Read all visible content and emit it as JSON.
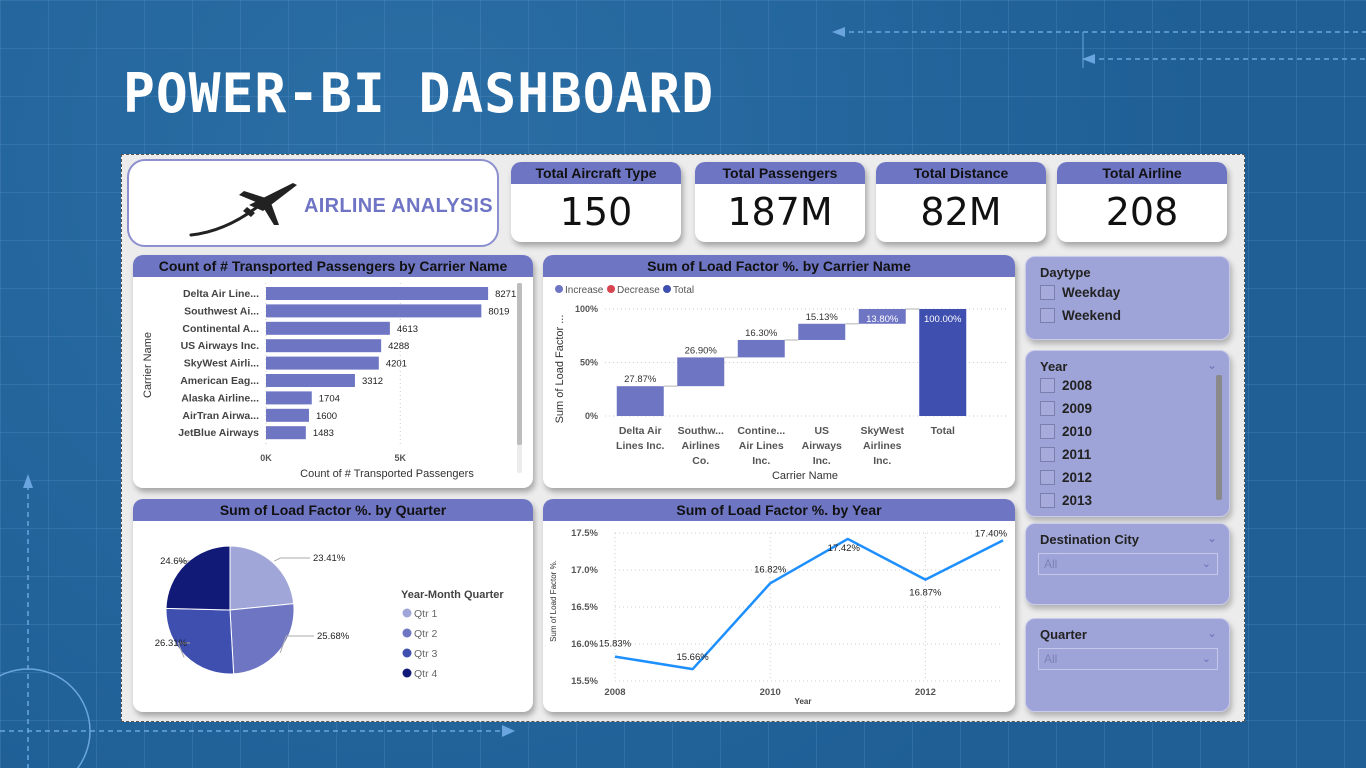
{
  "page": {
    "title": "POWER-BI DASHBOARD"
  },
  "logo": {
    "text": "AIRLINE ANALYSIS",
    "icon": "airplane-icon"
  },
  "kpis": [
    {
      "label": "Total Aircraft Type",
      "value": "150"
    },
    {
      "label": "Total Passengers",
      "value": "187M"
    },
    {
      "label": "Total Distance",
      "value": "82M"
    },
    {
      "label": "Total Airline",
      "value": "208"
    }
  ],
  "colors": {
    "header": "#6e75c3",
    "bar": "#6e75c3",
    "increase": "#6e75c3",
    "decrease": "#d64550",
    "total": "#3f4fb0",
    "line": "#1e8fff",
    "pie": [
      "#a1a6d9",
      "#6e75c3",
      "#3f4fb0",
      "#121a78"
    ],
    "slicer_bg": "#9fa4d8"
  },
  "chart_data": [
    {
      "id": "passengers_by_carrier",
      "type": "bar",
      "orientation": "horizontal",
      "title": "Count of # Transported Passengers by Carrier Name",
      "xlabel": "Count of # Transported Passengers",
      "ylabel": "Carrier Name",
      "categories": [
        "Delta Air Line...",
        "Southwest Ai...",
        "Continental A...",
        "US Airways Inc.",
        "SkyWest Airli...",
        "American Eag...",
        "Alaska Airline...",
        "AirTran Airwa...",
        "JetBlue Airways"
      ],
      "values": [
        8271,
        8019,
        4613,
        4288,
        4201,
        3312,
        1704,
        1600,
        1483
      ],
      "data_labels": [
        "8271",
        "8019",
        "4613",
        "4288",
        "4201",
        "3312",
        "1704",
        "1600",
        "1483"
      ],
      "xticks": [
        "0K",
        "5K"
      ],
      "xtick_values": [
        0,
        5000
      ],
      "xlim": [
        0,
        8900
      ],
      "grid": true
    },
    {
      "id": "load_factor_by_carrier",
      "type": "bar",
      "subtype": "waterfall",
      "title": "Sum of Load Factor %. by Carrier Name",
      "xlabel": "Carrier Name",
      "ylabel": "Sum of Load Factor ...",
      "legend": [
        "Increase",
        "Decrease",
        "Total"
      ],
      "legend_position": "top-left",
      "categories": [
        [
          "Delta Air",
          "Lines Inc."
        ],
        [
          "Southw...",
          "Airlines",
          "Co."
        ],
        [
          "Contine...",
          "Air Lines",
          "Inc."
        ],
        [
          "US",
          "Airways",
          "Inc."
        ],
        [
          "SkyWest",
          "Airlines",
          "Inc."
        ],
        [
          "Total"
        ]
      ],
      "values": [
        27.87,
        26.9,
        16.3,
        15.13,
        13.8,
        100.0
      ],
      "data_labels": [
        "27.87%",
        "26.90%",
        "16.30%",
        "15.13%",
        "13.80%",
        "100.00%"
      ],
      "is_total": [
        false,
        false,
        false,
        false,
        false,
        true
      ],
      "yticks": [
        "0%",
        "50%",
        "100%"
      ],
      "ytick_values": [
        0,
        50,
        100
      ],
      "ylim": [
        0,
        100
      ],
      "grid": true
    },
    {
      "id": "load_factor_by_quarter",
      "type": "pie",
      "title": "Sum of Load Factor %. by Quarter",
      "legend_title": "Year-Month Quarter",
      "legend_position": "right",
      "labels": [
        "Qtr 1",
        "Qtr 2",
        "Qtr 3",
        "Qtr 4"
      ],
      "values": [
        23.41,
        25.68,
        26.31,
        24.6
      ],
      "data_labels": [
        "23.41%",
        "25.68%",
        "26.31%",
        "24.6%"
      ]
    },
    {
      "id": "load_factor_by_year",
      "type": "line",
      "title": "Sum of Load Factor %. by Year",
      "xlabel": "Year",
      "ylabel": "Sum of Load Factor %.",
      "x": [
        2008,
        2009,
        2010,
        2011,
        2012,
        2013
      ],
      "values": [
        15.83,
        15.66,
        16.82,
        17.42,
        16.87,
        17.4
      ],
      "data_labels": [
        "15.83%",
        "15.66%",
        "16.82%",
        "17.42%",
        "16.87%",
        "17.40%"
      ],
      "xticks": [
        "2008",
        "2010",
        "2012"
      ],
      "xtick_values": [
        2008,
        2010,
        2012
      ],
      "yticks": [
        "15.5%",
        "16.0%",
        "16.5%",
        "17.0%",
        "17.5%"
      ],
      "ytick_values": [
        15.5,
        16.0,
        16.5,
        17.0,
        17.5
      ],
      "ylim": [
        15.5,
        17.5
      ],
      "grid": true
    }
  ],
  "slicers": {
    "daytype": {
      "title": "Daytype",
      "options": [
        "Weekday",
        "Weekend"
      ]
    },
    "year": {
      "title": "Year",
      "options": [
        "2008",
        "2009",
        "2010",
        "2011",
        "2012",
        "2013"
      ]
    },
    "destination_city": {
      "title": "Destination City",
      "selected": "All"
    },
    "quarter": {
      "title": "Quarter",
      "selected": "All"
    }
  }
}
